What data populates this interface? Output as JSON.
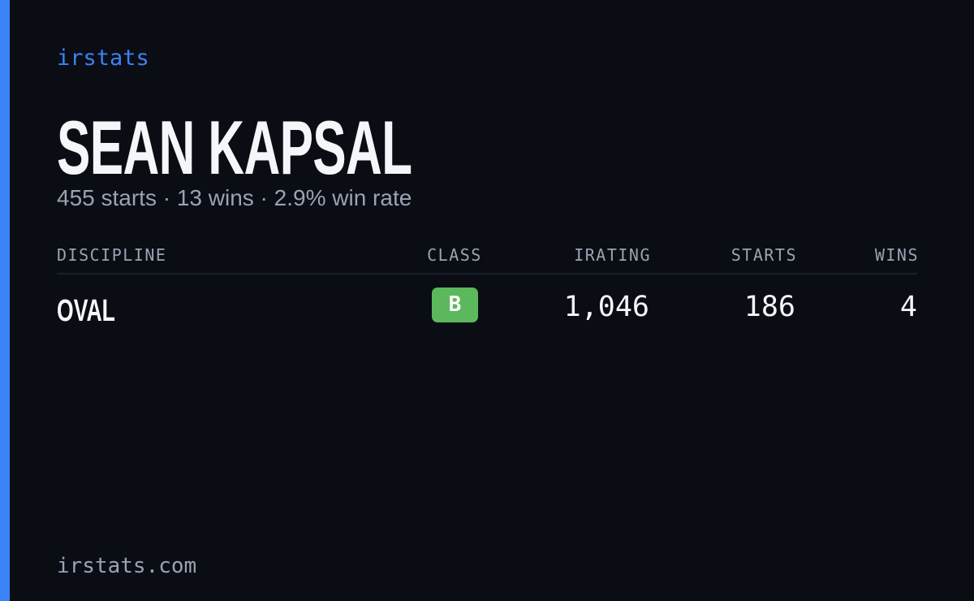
{
  "brand": "irstats",
  "driver": {
    "name": "SEAN KAPSAL",
    "summary": "455 starts · 13 wins · 2.9% win rate"
  },
  "table": {
    "headers": [
      "DISCIPLINE",
      "CLASS",
      "IRATING",
      "STARTS",
      "WINS"
    ],
    "rows": [
      [
        "OVAL",
        "B",
        "1,046",
        "186",
        "4"
      ]
    ]
  },
  "footer": "irstats.com"
}
